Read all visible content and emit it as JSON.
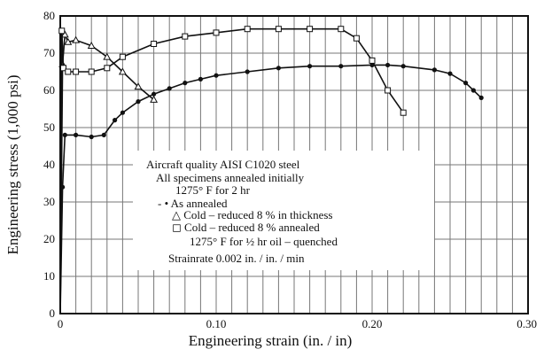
{
  "chart_data": {
    "type": "line",
    "xlabel": "Engineering strain (in. / in)",
    "ylabel": "Engineering stress (1,000 psi)",
    "xlim": [
      0,
      0.3
    ],
    "ylim": [
      0,
      80
    ],
    "x_ticks": [
      "0",
      "0.10",
      "0.20",
      "0.30"
    ],
    "y_ticks": [
      "0",
      "10",
      "20",
      "30",
      "40",
      "50",
      "60",
      "70",
      "80"
    ],
    "grid": true,
    "legend_placement": "center-right",
    "legend_lines": [
      "Aircraft quality AISI C1020 steel",
      "All specimens annealed initially",
      "1275° F for 2 hr",
      "- • As annealed",
      "△  Cold – reduced 8 % in thickness",
      "◻  Cold – reduced 8 % annealed",
      "1275° F for ½ hr oil – quenched",
      "Strainrate 0.002 in. / in. / min"
    ],
    "series": [
      {
        "marker": "dot",
        "x": [
          0,
          0.0015,
          0.003,
          0.01,
          0.02,
          0.028,
          0.035,
          0.04,
          0.05,
          0.06,
          0.07,
          0.08,
          0.09,
          0.1,
          0.12,
          0.14,
          0.16,
          0.18,
          0.2,
          0.21,
          0.22,
          0.24,
          0.25,
          0.26,
          0.265,
          0.27
        ],
        "y": [
          0,
          34,
          48,
          48,
          47.5,
          48,
          52,
          54,
          57,
          59,
          60.5,
          62,
          63,
          64,
          65,
          66,
          66.5,
          66.5,
          66.8,
          66.8,
          66.5,
          65.5,
          64.5,
          62,
          60,
          58
        ]
      },
      {
        "marker": "triangle",
        "x": [
          0,
          0.0015,
          0.003,
          0.005,
          0.01,
          0.02,
          0.03,
          0.04,
          0.05,
          0.06
        ],
        "y": [
          0,
          67,
          75,
          73,
          73.5,
          72,
          69,
          65,
          61,
          57.5
        ]
      },
      {
        "marker": "square",
        "x": [
          0,
          0.001,
          0.002,
          0.005,
          0.01,
          0.02,
          0.03,
          0.04,
          0.06,
          0.08,
          0.1,
          0.12,
          0.14,
          0.16,
          0.18,
          0.19,
          0.2,
          0.21,
          0.22
        ],
        "y": [
          0,
          76,
          66,
          65,
          65,
          65,
          66,
          69,
          72.5,
          74.5,
          75.5,
          76.5,
          76.5,
          76.5,
          76.5,
          74,
          68,
          60,
          54
        ]
      }
    ]
  }
}
